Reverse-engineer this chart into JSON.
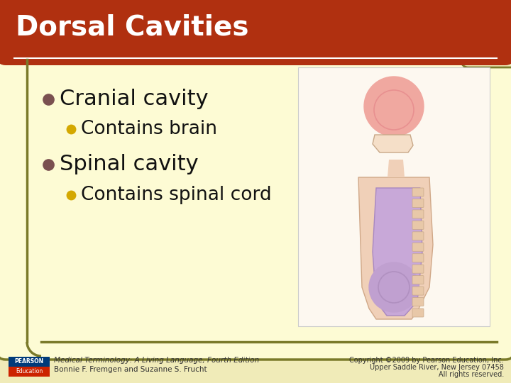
{
  "title": "Dorsal Cavities",
  "title_color": "#ffffff",
  "title_bg_color": "#b03010",
  "background_color": "#fdfbd4",
  "outer_bg_color": "#f0ebb8",
  "border_color": "#7a7a2a",
  "bullet1": "Cranial cavity",
  "sub_bullet1": "Contains brain",
  "bullet2": "Spinal cavity",
  "sub_bullet2": "Contains spinal cord",
  "bullet_color": "#7a5050",
  "sub_bullet_color": "#d4a800",
  "text_color": "#111111",
  "footer_left1": "Medical Terminology: A Living Language, Fourth Edition",
  "footer_left2": "Bonnie F. Fremgen and Suzanne S. Frucht",
  "footer_right1": "Copyright ©2009 by Pearson Education, Inc.",
  "footer_right2": "Upper Saddle River, New Jersey 07458",
  "footer_right3": "All rights reserved.",
  "footer_color": "#333333",
  "pearson_blue": "#003a7a",
  "pearson_red": "#cc2200",
  "title_fontsize": 28,
  "bullet1_fontsize": 22,
  "bullet2_fontsize": 22,
  "sub_fontsize": 19
}
